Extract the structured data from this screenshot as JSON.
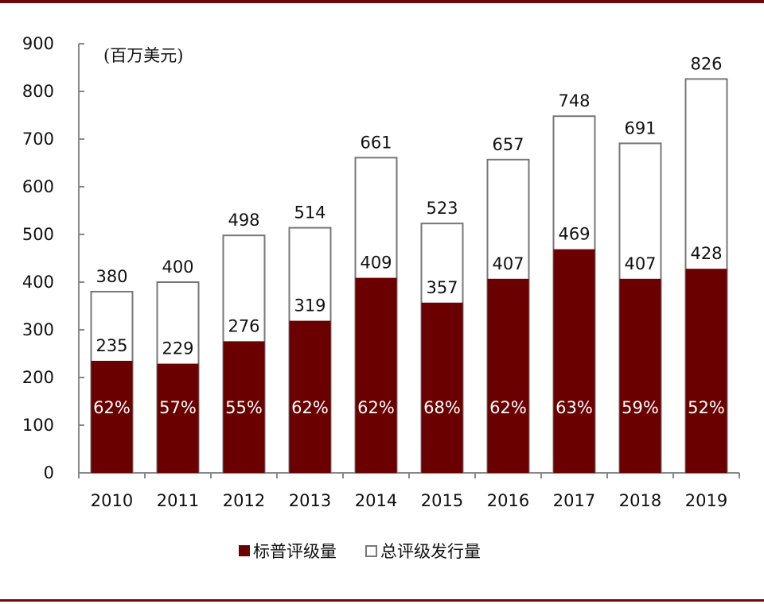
{
  "chart_data": {
    "type": "bar",
    "unit_label": "(百万美元)",
    "categories": [
      "2010",
      "2011",
      "2012",
      "2013",
      "2014",
      "2015",
      "2016",
      "2017",
      "2018",
      "2019"
    ],
    "series": [
      {
        "name": "标普评级量",
        "color": "#6b0000",
        "values": [
          235,
          229,
          276,
          319,
          409,
          357,
          407,
          469,
          407,
          428
        ]
      },
      {
        "name": "总评级发行量",
        "color": "#ffffff",
        "values": [
          380,
          400,
          498,
          514,
          661,
          523,
          657,
          748,
          691,
          826
        ]
      }
    ],
    "share_labels": [
      "62%",
      "57%",
      "55%",
      "62%",
      "62%",
      "68%",
      "62%",
      "63%",
      "59%",
      "52%"
    ],
    "ylim": [
      0,
      900
    ],
    "yticks": [
      "0",
      "100",
      "200",
      "300",
      "400",
      "500",
      "600",
      "700",
      "800",
      "900"
    ],
    "overlay": true,
    "grid": false,
    "legend_position": "bottom"
  }
}
